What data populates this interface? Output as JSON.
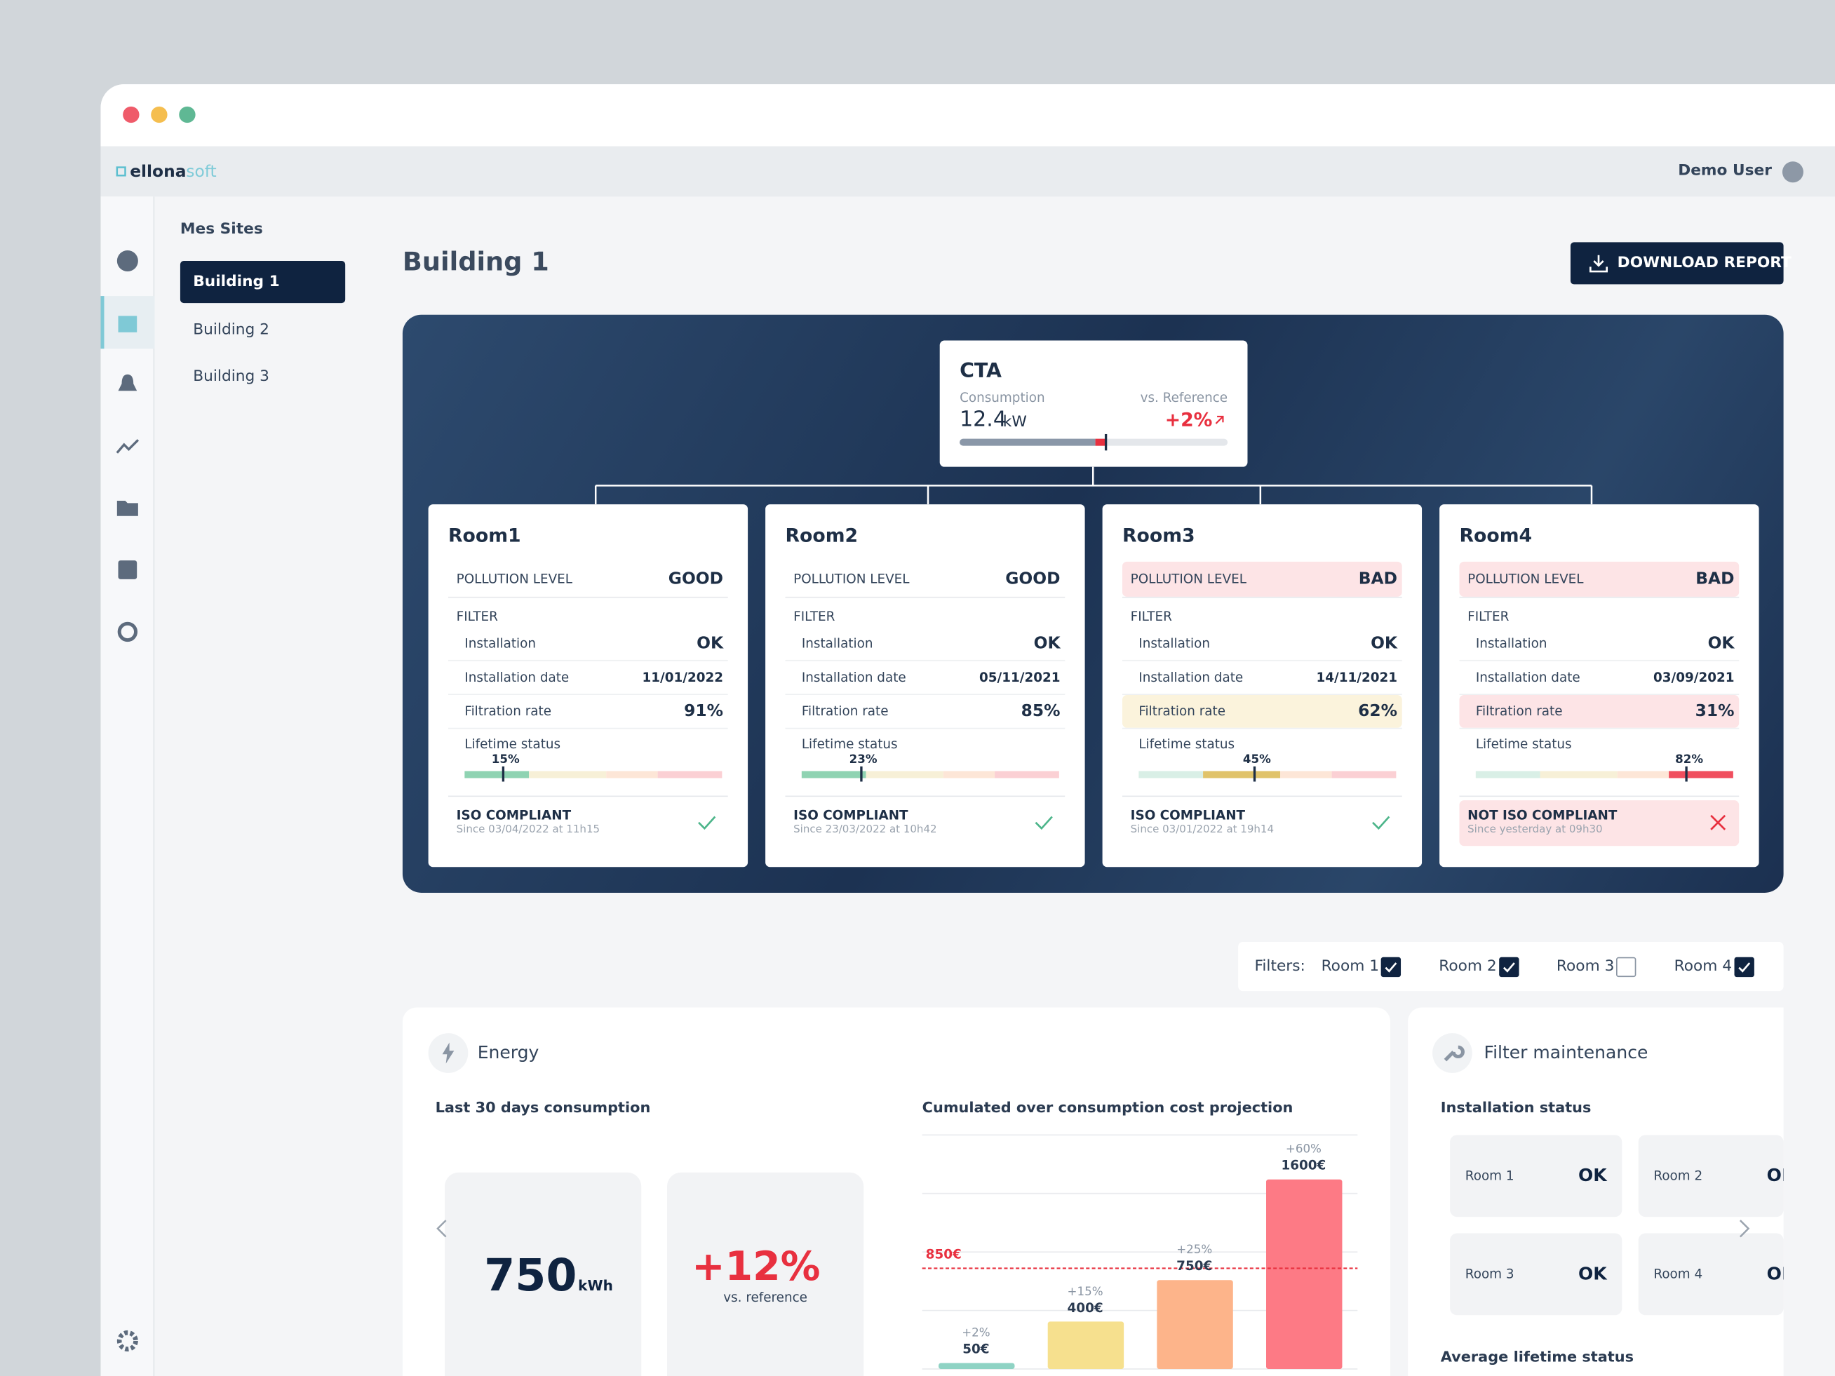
{
  "window": {
    "logo_main": "ellona",
    "logo_accent": "soft",
    "user": "Demo User"
  },
  "sidebar": {
    "title": "Mes Sites",
    "sites": [
      "Building 1",
      "Building 2",
      "Building 3"
    ]
  },
  "page": {
    "title": "Building 1",
    "download": "DOWNLOAD REPORT"
  },
  "cta": {
    "title": "CTA",
    "consumption_label": "Consumption",
    "consumption": "12.4",
    "unit": "kW",
    "reference_label": "vs. Reference",
    "change": "+2%"
  },
  "rooms": [
    {
      "name": "Room1",
      "pollution_label": "POLLUTION LEVEL",
      "pollution": "GOOD",
      "filter_label": "FILTER",
      "rows": [
        {
          "label": "Installation",
          "value": "OK"
        },
        {
          "label": "Installation date",
          "value": "11/01/2022"
        },
        {
          "label": "Filtration rate",
          "value": "91%"
        }
      ],
      "lifetime_label": "Lifetime status",
      "lifetime": 15,
      "lifetime_text": "15%",
      "iso": "ISO COMPLIANT",
      "iso_since": "Since 03/04/2022 at 11h15",
      "compliant": true
    },
    {
      "name": "Room2",
      "pollution_label": "POLLUTION LEVEL",
      "pollution": "GOOD",
      "filter_label": "FILTER",
      "rows": [
        {
          "label": "Installation",
          "value": "OK"
        },
        {
          "label": "Installation date",
          "value": "05/11/2021"
        },
        {
          "label": "Filtration rate",
          "value": "85%"
        }
      ],
      "lifetime_label": "Lifetime status",
      "lifetime": 23,
      "lifetime_text": "23%",
      "iso": "ISO COMPLIANT",
      "iso_since": "Since 23/03/2022 at 10h42",
      "compliant": true
    },
    {
      "name": "Room3",
      "pollution_label": "POLLUTION LEVEL",
      "pollution": "BAD",
      "pollution_color": "#fde4e6",
      "filter_label": "FILTER",
      "rows": [
        {
          "label": "Installation",
          "value": "OK"
        },
        {
          "label": "Installation date",
          "value": "14/11/2021"
        },
        {
          "label": "Filtration rate",
          "value": "62%",
          "color": "#fbf3dc"
        }
      ],
      "lifetime_label": "Lifetime status",
      "lifetime": 45,
      "lifetime_text": "45%",
      "iso": "ISO COMPLIANT",
      "iso_since": "Since 03/01/2022 at 19h14",
      "compliant": true
    },
    {
      "name": "Room4",
      "pollution_label": "POLLUTION LEVEL",
      "pollution": "BAD",
      "pollution_color": "#fde4e6",
      "filter_label": "FILTER",
      "rows": [
        {
          "label": "Installation",
          "value": "OK"
        },
        {
          "label": "Installation date",
          "value": "03/09/2021"
        },
        {
          "label": "Filtration rate",
          "value": "31%",
          "color": "#fde4e6"
        }
      ],
      "lifetime_label": "Lifetime status",
      "lifetime": 82,
      "lifetime_text": "82%",
      "iso": "NOT ISO COMPLIANT",
      "iso_since": "Since yesterday at 09h30",
      "compliant": false
    }
  ],
  "filters": {
    "label": "Filters:",
    "items": [
      {
        "name": "Room 1",
        "checked": true
      },
      {
        "name": "Room 2",
        "checked": true
      },
      {
        "name": "Room 3",
        "checked": false
      },
      {
        "name": "Room 4",
        "checked": true
      }
    ]
  },
  "energy": {
    "title": "Energy",
    "left_title": "Last 30 days consumption",
    "consumption": "750",
    "unit": "kWh",
    "change": "+12%",
    "change_note": "vs. reference",
    "chart": {
      "type": "bar",
      "title": "Cumulated over consumption cost projection",
      "values": [
        50,
        400,
        750,
        1600
      ],
      "value_labels": [
        "50€",
        "400€",
        "750€",
        "1600€"
      ],
      "changes": [
        "+2%",
        "+15%",
        "+25%",
        "+60%"
      ],
      "colors": [
        "#8fd3c4",
        "#f6e08e",
        "#fdb48a",
        "#fd7a85"
      ],
      "reference": 850,
      "reference_label": "850€"
    }
  },
  "maintenance": {
    "title": "Filter maintenance",
    "subtitle": "Installation status",
    "items": [
      {
        "room": "Room 1",
        "status": "OK"
      },
      {
        "room": "Room 2",
        "status": "OK"
      },
      {
        "room": "Room 3",
        "status": "OK"
      },
      {
        "room": "Room 4",
        "status": "OK"
      }
    ],
    "footer": "Average lifetime status"
  }
}
